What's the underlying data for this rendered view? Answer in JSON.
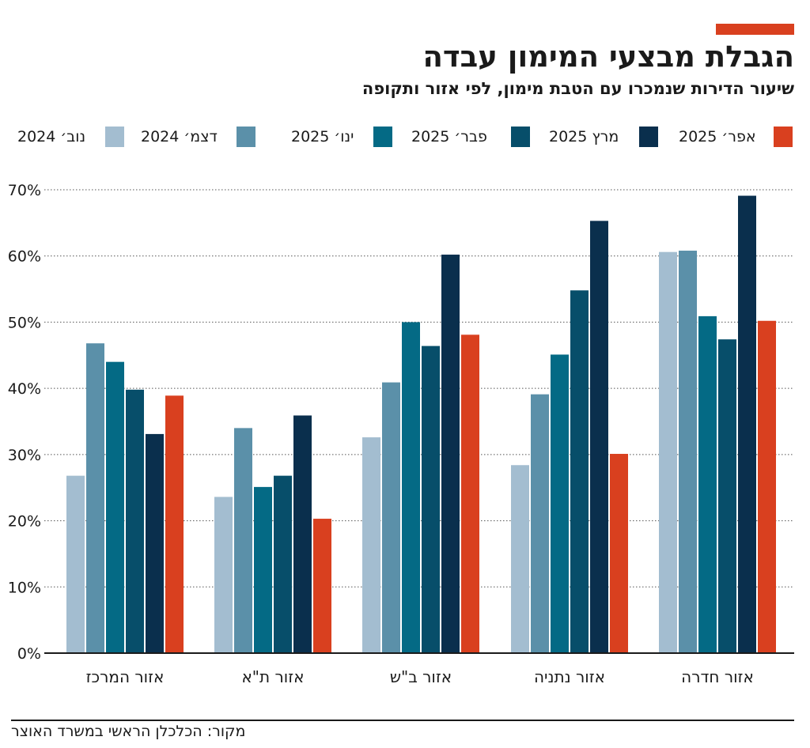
{
  "header": {
    "title": "הגבלת מבצעי המימון עבדה",
    "subtitle": "שיעור הדירות שנמכרו עם הטבת מימון, לפי אזור ותקופה",
    "accent_color": "#d9401f"
  },
  "chart_data": {
    "type": "bar",
    "title": "הגבלת מבצעי המימון עבדה",
    "subtitle": "שיעור הדירות שנמכרו עם הטבת מימון, לפי אזור ותקופה",
    "xlabel": "",
    "ylabel": "",
    "ylim": [
      0,
      70
    ],
    "y_ticks": [
      "0%",
      "10%",
      "20%",
      "30%",
      "40%",
      "50%",
      "60%",
      "70%"
    ],
    "y_tick_values": [
      0,
      10,
      20,
      30,
      40,
      50,
      60,
      70
    ],
    "grid": true,
    "legend_position": "top",
    "categories": [
      "אזור המרכז",
      "אזור ת\"א",
      "אזור ב\"ש",
      "אזור נתניה",
      "אזור חדרה"
    ],
    "series": [
      {
        "name": "נוב׳ 2024",
        "color": "#a3bdd0",
        "values": [
          26.8,
          23.6,
          32.6,
          28.4,
          60.6
        ]
      },
      {
        "name": "דצמ׳ 2024",
        "color": "#5b90a9",
        "values": [
          46.8,
          34.0,
          40.9,
          39.1,
          60.8
        ]
      },
      {
        "name": "ינו׳ 2025",
        "color": "#046a85",
        "values": [
          44.0,
          25.1,
          50.0,
          45.1,
          50.9
        ]
      },
      {
        "name": "פבר׳ 2025",
        "color": "#074e6a",
        "values": [
          39.8,
          26.8,
          46.4,
          54.8,
          47.4
        ]
      },
      {
        "name": "מרץ 2025",
        "color": "#0a2f4d",
        "values": [
          33.1,
          35.9,
          60.2,
          65.3,
          69.1
        ]
      },
      {
        "name": "אפר׳ 2025",
        "color": "#d9401f",
        "values": [
          38.9,
          20.3,
          48.1,
          30.1,
          50.2
        ]
      }
    ]
  },
  "footer": {
    "source": "מקור: הכלכלן הראשי במשרד האוצר"
  }
}
